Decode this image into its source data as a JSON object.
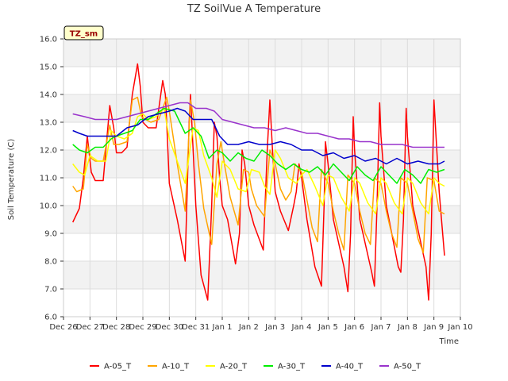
{
  "chart_data": {
    "type": "line",
    "title": "TZ SoilVue A Temperature",
    "xlabel": "Time",
    "ylabel": "Soil Temperature (C)",
    "site_label": "TZ_sm",
    "ylim": [
      6.0,
      16.0
    ],
    "yticks": [
      "6.0",
      "7.0",
      "8.0",
      "9.0",
      "10.0",
      "11.0",
      "12.0",
      "13.0",
      "14.0",
      "15.0",
      "16.0"
    ],
    "xlim_days": [
      0,
      15
    ],
    "xticks": [
      "Dec 26",
      "Dec 27",
      "Dec 28",
      "Dec 29",
      "Dec 30",
      "Dec 31",
      "Jan 1",
      "Jan 2",
      "Jan 3",
      "Jan 4",
      "Jan 5",
      "Jan 6",
      "Jan 7",
      "Jan 8",
      "Jan 9",
      "Jan 10"
    ],
    "x_unit": "days since Dec 26 00:00",
    "grid": true,
    "legend_position": "bottom",
    "series": [
      {
        "name": "A-05_T",
        "color": "#ff0000",
        "x": [
          0.35,
          0.6,
          0.75,
          0.9,
          0.98,
          1.05,
          1.2,
          1.5,
          1.75,
          1.9,
          2.0,
          2.2,
          2.4,
          2.6,
          2.8,
          2.9,
          3.0,
          3.2,
          3.5,
          3.75,
          3.85,
          3.9,
          4.0,
          4.3,
          4.6,
          4.75,
          4.8,
          4.9,
          5.0,
          5.2,
          5.45,
          5.6,
          5.7,
          5.8,
          5.9,
          6.0,
          6.2,
          6.5,
          6.65,
          6.75,
          6.85,
          6.95,
          7.0,
          7.2,
          7.55,
          7.7,
          7.8,
          7.9,
          8.0,
          8.2,
          8.5,
          8.7,
          8.8,
          8.9,
          9.0,
          9.2,
          9.5,
          9.75,
          9.85,
          9.9,
          10.0,
          10.2,
          10.6,
          10.75,
          10.85,
          10.95,
          11.0,
          11.2,
          11.65,
          11.75,
          11.85,
          11.95,
          12.0,
          12.2,
          12.65,
          12.75,
          12.85,
          12.95,
          13.0,
          13.2,
          13.7,
          13.8,
          13.9,
          14.0,
          14.2,
          14.4
        ],
        "values": [
          9.4,
          9.9,
          11.0,
          12.5,
          11.8,
          11.2,
          10.9,
          10.9,
          13.6,
          12.8,
          11.9,
          11.9,
          12.1,
          14.0,
          15.1,
          14.3,
          13.0,
          12.8,
          12.8,
          14.5,
          14.0,
          13.0,
          10.8,
          9.5,
          8.0,
          13.0,
          14.0,
          12.0,
          10.0,
          7.5,
          6.6,
          10.0,
          13.0,
          12.5,
          11.0,
          10.0,
          9.5,
          7.9,
          9.0,
          12.0,
          11.5,
          10.5,
          10.0,
          9.3,
          8.4,
          12.0,
          13.8,
          12.0,
          10.5,
          9.8,
          9.1,
          10.0,
          10.5,
          11.5,
          11.0,
          9.5,
          7.8,
          7.1,
          10.0,
          12.3,
          11.5,
          9.5,
          7.8,
          6.9,
          9.0,
          13.2,
          12.0,
          9.5,
          7.6,
          7.1,
          10.0,
          13.7,
          12.5,
          10.0,
          7.8,
          7.6,
          9.5,
          13.5,
          12.5,
          10.0,
          7.8,
          6.6,
          9.0,
          13.8,
          10.5,
          8.2
        ]
      },
      {
        "name": "A-10_T",
        "color": "#ffa500",
        "x": [
          0.35,
          0.5,
          0.75,
          0.9,
          1.05,
          1.2,
          1.5,
          1.75,
          1.9,
          2.1,
          2.4,
          2.6,
          2.8,
          2.95,
          3.1,
          3.3,
          3.6,
          3.9,
          4.0,
          4.3,
          4.6,
          4.8,
          4.95,
          5.1,
          5.3,
          5.6,
          5.8,
          5.95,
          6.1,
          6.3,
          6.6,
          6.8,
          7.0,
          7.1,
          7.3,
          7.6,
          7.8,
          8.0,
          8.2,
          8.4,
          8.6,
          8.75,
          9.0,
          9.2,
          9.4,
          9.6,
          9.75,
          10.0,
          10.2,
          10.4,
          10.6,
          10.75,
          11.0,
          11.2,
          11.4,
          11.6,
          11.75,
          12.0,
          12.2,
          12.4,
          12.6,
          12.75,
          13.0,
          13.2,
          13.4,
          13.6,
          13.75,
          14.0,
          14.2,
          14.4
        ],
        "values": [
          10.7,
          10.5,
          10.6,
          12.2,
          11.7,
          11.6,
          11.6,
          12.9,
          12.2,
          12.2,
          12.3,
          13.8,
          13.9,
          13.2,
          13.1,
          13.0,
          13.1,
          13.9,
          13.4,
          11.5,
          9.8,
          13.8,
          13.0,
          11.5,
          9.9,
          8.6,
          11.5,
          12.3,
          11.4,
          10.3,
          9.3,
          11.3,
          11.2,
          10.6,
          10.0,
          9.6,
          12.0,
          11.5,
          10.6,
          10.2,
          10.5,
          11.5,
          11.2,
          10.2,
          9.2,
          8.7,
          11.3,
          10.8,
          9.8,
          9.0,
          8.4,
          11.1,
          10.8,
          9.8,
          9.0,
          8.6,
          11.0,
          10.8,
          9.8,
          9.0,
          8.5,
          11.0,
          10.8,
          9.8,
          8.8,
          8.3,
          11.0,
          10.9,
          9.8,
          9.7
        ]
      },
      {
        "name": "A-20_T",
        "color": "#ffff00",
        "x": [
          0.35,
          0.6,
          0.8,
          1.0,
          1.3,
          1.6,
          1.8,
          2.0,
          2.3,
          2.6,
          2.8,
          3.0,
          3.2,
          3.5,
          3.8,
          4.0,
          4.3,
          4.6,
          4.9,
          5.1,
          5.3,
          5.6,
          5.8,
          6.0,
          6.3,
          6.6,
          6.9,
          7.1,
          7.4,
          7.6,
          7.8,
          8.0,
          8.2,
          8.5,
          8.8,
          9.0,
          9.2,
          9.5,
          9.8,
          10.0,
          10.2,
          10.5,
          10.8,
          11.0,
          11.2,
          11.5,
          11.8,
          12.0,
          12.2,
          12.5,
          12.8,
          13.0,
          13.2,
          13.5,
          13.8,
          14.0,
          14.2,
          14.4
        ],
        "values": [
          11.5,
          11.2,
          11.1,
          11.8,
          11.6,
          11.6,
          12.7,
          12.5,
          12.4,
          12.6,
          13.2,
          13.3,
          13.1,
          13.2,
          13.5,
          12.4,
          11.6,
          10.8,
          12.8,
          12.7,
          11.8,
          11.0,
          10.3,
          11.6,
          11.3,
          10.6,
          10.5,
          11.3,
          11.2,
          10.7,
          10.4,
          12.0,
          11.7,
          11.0,
          10.8,
          11.1,
          11.3,
          10.7,
          10.0,
          11.1,
          11.0,
          10.3,
          9.8,
          11.0,
          10.8,
          10.1,
          9.7,
          11.0,
          10.8,
          10.1,
          9.7,
          11.0,
          10.8,
          10.1,
          9.7,
          11.0,
          10.8,
          10.7
        ]
      },
      {
        "name": "A-30_T",
        "color": "#00ee00",
        "x": [
          0.35,
          0.6,
          0.9,
          1.2,
          1.5,
          1.8,
          2.0,
          2.3,
          2.6,
          2.9,
          3.2,
          3.5,
          3.8,
          4.2,
          4.6,
          4.9,
          5.2,
          5.5,
          5.8,
          6.0,
          6.3,
          6.6,
          6.9,
          7.2,
          7.5,
          7.8,
          8.1,
          8.4,
          8.7,
          9.0,
          9.3,
          9.6,
          9.9,
          10.2,
          10.5,
          10.8,
          11.1,
          11.4,
          11.7,
          12.0,
          12.3,
          12.6,
          12.9,
          13.2,
          13.5,
          13.8,
          14.1,
          14.4
        ],
        "values": [
          12.2,
          12.0,
          11.9,
          12.1,
          12.1,
          12.4,
          12.5,
          12.6,
          12.7,
          13.1,
          13.1,
          13.3,
          13.5,
          13.4,
          12.6,
          12.8,
          12.5,
          11.7,
          12.0,
          11.9,
          11.6,
          11.9,
          11.7,
          11.6,
          12.0,
          11.8,
          11.5,
          11.3,
          11.5,
          11.3,
          11.2,
          11.4,
          11.1,
          11.5,
          11.2,
          10.9,
          11.4,
          11.1,
          10.9,
          11.4,
          11.1,
          10.8,
          11.3,
          11.1,
          10.8,
          11.3,
          11.2,
          11.3
        ]
      },
      {
        "name": "A-40_T",
        "color": "#0000cc",
        "x": [
          0.35,
          0.6,
          0.9,
          1.2,
          1.6,
          2.0,
          2.4,
          2.8,
          3.2,
          3.6,
          4.0,
          4.3,
          4.6,
          4.9,
          5.3,
          5.6,
          5.9,
          6.2,
          6.6,
          7.0,
          7.4,
          7.8,
          8.2,
          8.6,
          9.0,
          9.4,
          9.8,
          10.2,
          10.6,
          11.0,
          11.4,
          11.8,
          12.2,
          12.6,
          13.0,
          13.4,
          13.8,
          14.2,
          14.4
        ],
        "values": [
          12.7,
          12.6,
          12.5,
          12.5,
          12.5,
          12.5,
          12.8,
          12.9,
          13.2,
          13.3,
          13.4,
          13.5,
          13.4,
          13.1,
          13.1,
          13.1,
          12.5,
          12.2,
          12.2,
          12.3,
          12.2,
          12.2,
          12.3,
          12.2,
          12.0,
          12.0,
          11.8,
          11.9,
          11.7,
          11.8,
          11.6,
          11.7,
          11.5,
          11.7,
          11.5,
          11.6,
          11.5,
          11.5,
          11.6
        ]
      },
      {
        "name": "A-50_T",
        "color": "#9933cc",
        "x": [
          0.35,
          0.8,
          1.2,
          1.6,
          2.0,
          2.4,
          2.8,
          3.2,
          3.6,
          4.0,
          4.4,
          4.7,
          5.0,
          5.4,
          5.7,
          6.0,
          6.4,
          6.8,
          7.2,
          7.6,
          8.0,
          8.4,
          8.8,
          9.2,
          9.6,
          10.0,
          10.4,
          10.8,
          11.2,
          11.6,
          12.0,
          12.4,
          12.8,
          13.2,
          13.6,
          14.0,
          14.4
        ],
        "values": [
          13.3,
          13.2,
          13.1,
          13.1,
          13.1,
          13.2,
          13.3,
          13.4,
          13.5,
          13.6,
          13.7,
          13.7,
          13.5,
          13.5,
          13.4,
          13.1,
          13.0,
          12.9,
          12.8,
          12.8,
          12.7,
          12.8,
          12.7,
          12.6,
          12.6,
          12.5,
          12.4,
          12.4,
          12.3,
          12.3,
          12.2,
          12.2,
          12.2,
          12.1,
          12.1,
          12.1,
          12.1
        ]
      }
    ]
  }
}
